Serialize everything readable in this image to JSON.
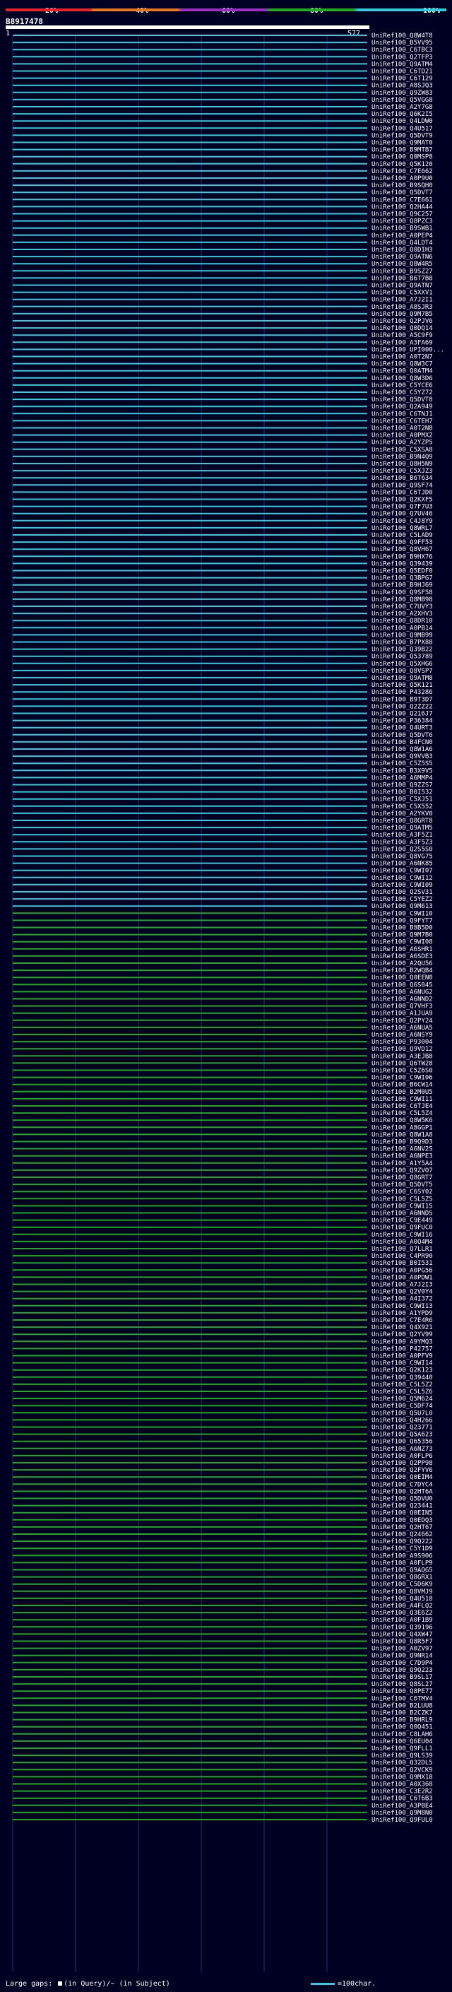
{
  "scale": {
    "labels": [
      "20%",
      "~40%",
      "~60%",
      "~80%",
      "~100%"
    ],
    "colors": [
      "#e8202a",
      "#e87820",
      "#9b30c0",
      "#22aa22",
      "#33ccdd"
    ]
  },
  "query": {
    "id": "B8917478",
    "start": "1",
    "end": "577"
  },
  "hits": [
    "UniRef100_Q8W4T8",
    "UniRef100_B5VV95",
    "UniRef100_C6TBC3",
    "UniRef100_Q2TFP3",
    "UniRef100_Q9ATM4",
    "UniRef100_C6TD21",
    "UniRef100_C6T129",
    "UniRef100_A8SJQ3",
    "UniRef100_Q9ZW83",
    "UniRef100_Q5VGG8",
    "UniRef100_A2Y7G8",
    "UniRef100_Q6K2I5",
    "UniRef100_Q4LDW0",
    "UniRef100_Q4U517",
    "UniRef100_Q5DVT9",
    "UniRef100_Q9MAT0",
    "UniRef100_B9MTB7",
    "UniRef100_Q0MSP8",
    "UniRef100_Q5K120",
    "UniRef100_C7E662",
    "UniRef100_A0P9U0",
    "UniRef100_B9SQH0",
    "UniRef100_Q5DVT7",
    "UniRef100_C7E661",
    "UniRef100_Q2HA44",
    "UniRef100_Q9C257",
    "UniRef100_Q8PZC3",
    "UniRef100_B9SWB1",
    "UniRef100_A0PEP4",
    "UniRef100_Q4LDT4",
    "UniRef100_Q0DIH3",
    "UniRef100_Q9ATN6",
    "UniRef100_Q8W4R5",
    "UniRef100_B9SZ27",
    "UniRef100_B6T7B8",
    "UniRef100_Q9ATN7",
    "UniRef100_C5XXV1",
    "UniRef100_A7J2I1",
    "UniRef100_A8SJR3",
    "UniRef100_Q9M7B5",
    "UniRef100_Q2PJV6",
    "UniRef100_Q0DQ14",
    "UniRef100_A5C9F9",
    "UniRef100_A3FA69",
    "UniRef100_UPI000...",
    "UniRef100_A0T2N7",
    "UniRef100_Q8W3C7",
    "UniRef100_Q0ATM4",
    "UniRef100_Q8W3D6",
    "UniRef100_C5YCE6",
    "UniRef100_C5YZ72",
    "UniRef100_Q5DVT8",
    "UniRef100_Q2A949",
    "UniRef100_C6TNJ1",
    "UniRef100_C6TEH7",
    "UniRef100_A0T2N8",
    "UniRef100_A0PMX2",
    "UniRef100_A2YZP5",
    "UniRef100_C5XSA8",
    "UniRef100_B9N4Q9",
    "UniRef100_Q8H5N9",
    "UniRef100_C5XJZ3",
    "UniRef100_B6T634",
    "UniRef100_Q9SF74",
    "UniRef100_C6TJD0",
    "UniRef100_Q2KXF5",
    "UniRef100_Q7F7U3",
    "UniRef100_Q7UV46",
    "UniRef100_C4J8Y9",
    "UniRef100_Q8WRL7",
    "UniRef100_C5LAD9",
    "UniRef100_Q9FF53",
    "UniRef100_Q8VH67",
    "UniRef100_B9HX76",
    "UniRef100_Q39439",
    "UniRef100_Q5EDF0",
    "UniRef100_Q3BPG7",
    "UniRef100_B9HJ69",
    "UniRef100_Q9SF58",
    "UniRef100_Q8MB98",
    "UniRef100_C7UVY3",
    "UniRef100_A2XHV3",
    "UniRef100_Q8DR10",
    "UniRef100_A0PB14",
    "UniRef100_Q9MB99",
    "UniRef100_B7PX88",
    "UniRef100_Q39B22",
    "UniRef100_Q53789",
    "UniRef100_Q5XHG6",
    "UniRef100_Q8VSP7",
    "UniRef100_Q9ATM8",
    "UniRef100_Q5K121",
    "UniRef100_P43286",
    "UniRef100_B9T3D7",
    "UniRef100_Q2ZZ22",
    "UniRef100_Q216J7",
    "UniRef100_P36384",
    "UniRef100_Q4URT3",
    "UniRef100_Q5DVT6",
    "UniRef100_B4FCN0",
    "UniRef100_Q8W1A6",
    "UniRef100_Q9VVB3",
    "UniRef100_C5Z5S5",
    "UniRef100_B3X9V5",
    "UniRef100_A6MMP4",
    "UniRef100_Q9ZZS7",
    "UniRef100_B0I532",
    "UniRef100_C5XJ51",
    "UniRef100_C5X552",
    "UniRef100_A2YKV0",
    "UniRef100_Q8GRT8",
    "UniRef100_Q9ATM5",
    "UniRef100_A3F5Z1",
    "UniRef100_A3F5Z3",
    "UniRef100_Q2S5S0",
    "UniRef100_Q8VG75",
    "UniRef100_A6NK85",
    "UniRef100_C9WI07",
    "UniRef100_C9WI12",
    "UniRef100_C9WI09",
    "UniRef100_Q2SV31",
    "UniRef100_C5YEZ2",
    "UniRef100_Q9M613",
    "UniRef100_C9WI10",
    "UniRef100_Q9FYT7",
    "UniRef100_B8B5D0",
    "UniRef100_Q9M7B0",
    "UniRef100_C9WI08",
    "UniRef100_A6SHR1",
    "UniRef100_A6SDE3",
    "UniRef100_A2QU56",
    "UniRef100_B2WQB4",
    "UniRef100_Q0EEN0",
    "UniRef100_Q6S045",
    "UniRef100_A6NUG2",
    "UniRef100_A6NND2",
    "UniRef100_Q7VHF3",
    "UniRef100_A1JUA9",
    "UniRef100_Q2PY24",
    "UniRef100_A6NUA5",
    "UniRef100_A6NSY9",
    "UniRef100_P93004",
    "UniRef100_Q9VD12",
    "UniRef100_A3EJB8",
    "UniRef100_Q6TW28",
    "UniRef100_C5Z6S0",
    "UniRef100_C9WI06",
    "UniRef100_B6CW14",
    "UniRef100_B2M0U5",
    "UniRef100_C9WI11",
    "UniRef100_C6TJE4",
    "UniRef100_C5L5Z4",
    "UniRef100_Q8W5K6",
    "UniRef100_A8GGP1",
    "UniRef100_Q8W1A8",
    "UniRef100_B9Q9D3",
    "UniRef100_A6NV2S",
    "UniRef100_A6NPE3",
    "UniRef100_A1Y5A4",
    "UniRef100_Q9ZVO7",
    "UniRef100_Q8GRT7",
    "UniRef100_Q5DVT5",
    "UniRef100_C6SY02",
    "UniRef100_C5L5Z5",
    "UniRef100_C9WI15",
    "UniRef100_A6NND5",
    "UniRef100_C9E449",
    "UniRef100_Q9FUC0",
    "UniRef100_C9WI16",
    "UniRef100_A0Q4M4",
    "UniRef100_Q7LLR1",
    "UniRef100_C4PR90",
    "UniRef100_B0I531",
    "UniRef100_A0PG56",
    "UniRef100_A0PDW1",
    "UniRef100_A7J2I3",
    "UniRef100_Q2V0Y4",
    "UniRef100_A4I372",
    "UniRef100_C9WI13",
    "UniRef100_A1YPD9",
    "UniRef100_C7E4R6",
    "UniRef100_Q4X921",
    "UniRef100_Q2YV99",
    "UniRef100_A9YMQ3",
    "UniRef100_P42757",
    "UniRef100_A0PFV9",
    "UniRef100_C9WI14",
    "UniRef100_Q2K123",
    "UniRef100_Q39440",
    "UniRef100_C5L5Z2",
    "UniRef100_C5L5Z6",
    "UniRef100_Q5M624",
    "UniRef100_C5DF74",
    "UniRef100_Q5U7L0",
    "UniRef100_Q4H266",
    "UniRef100_Q23771",
    "UniRef100_Q5A623",
    "UniRef100_Q65356",
    "UniRef100_A6NZ73",
    "UniRef100_A0FLP6",
    "UniRef100_Q2PP98",
    "UniRef100_Q2FYV6",
    "UniRef100_Q0EIM4",
    "UniRef100_C7DYC4",
    "UniRef100_Q2HT6A",
    "UniRef100_Q5DVU0",
    "UniRef100_Q23441",
    "UniRef100_Q0EIN5",
    "UniRef100_Q0EDQ3",
    "UniRef100_Q2HT67",
    "UniRef100_Q24662",
    "UniRef100_Q9Q222",
    "UniRef100_C5Y1D9",
    "UniRef100_A9S906",
    "UniRef100_A0FLP9",
    "UniRef100_Q9AQG5",
    "UniRef100_Q8GRX1",
    "UniRef100_C5D6K9",
    "UniRef100_Q8VMJ9",
    "UniRef100_Q4U518",
    "UniRef100_A4FLQ2",
    "UniRef100_Q3E6Z2",
    "UniRef100_A0F1B9",
    "UniRef100_Q39196",
    "UniRef100_Q4XW47",
    "UniRef100_Q8R5F7",
    "UniRef100_A0ZV97",
    "UniRef100_Q9NR14",
    "UniRef100_C7D9P4",
    "UniRef100_Q9Q223",
    "UniRef100_B9SL17",
    "UniRef100_Q8SL27",
    "UniRef100_Q8PE77",
    "UniRef100_C6TMV4",
    "UniRef100_B2LUU8",
    "UniRef100_B2CZK7",
    "UniRef100_B9HRL9",
    "UniRef100_Q0Q451",
    "UniRef100_C8LAH6",
    "UniRef100_Q6EU04",
    "UniRef100_Q9FLL1",
    "UniRef100_Q9LS39",
    "UniRef100_Q32DL5",
    "UniRef100_Q2VCK9",
    "UniRef100_Q9MX18",
    "UniRef100_A0X368",
    "UniRef100_C3E2R2",
    "UniRef100_C6T6B3",
    "UniRef100_A3PBE4",
    "UniRef100_Q9M8N0",
    "UniRef100_Q9FUL0"
  ],
  "footer": {
    "gaps_label": "Large gaps: ",
    "in_query": "(in Query)",
    "separator": "/~ ",
    "in_subject": "(in Subject)",
    "legend": "=100char."
  }
}
